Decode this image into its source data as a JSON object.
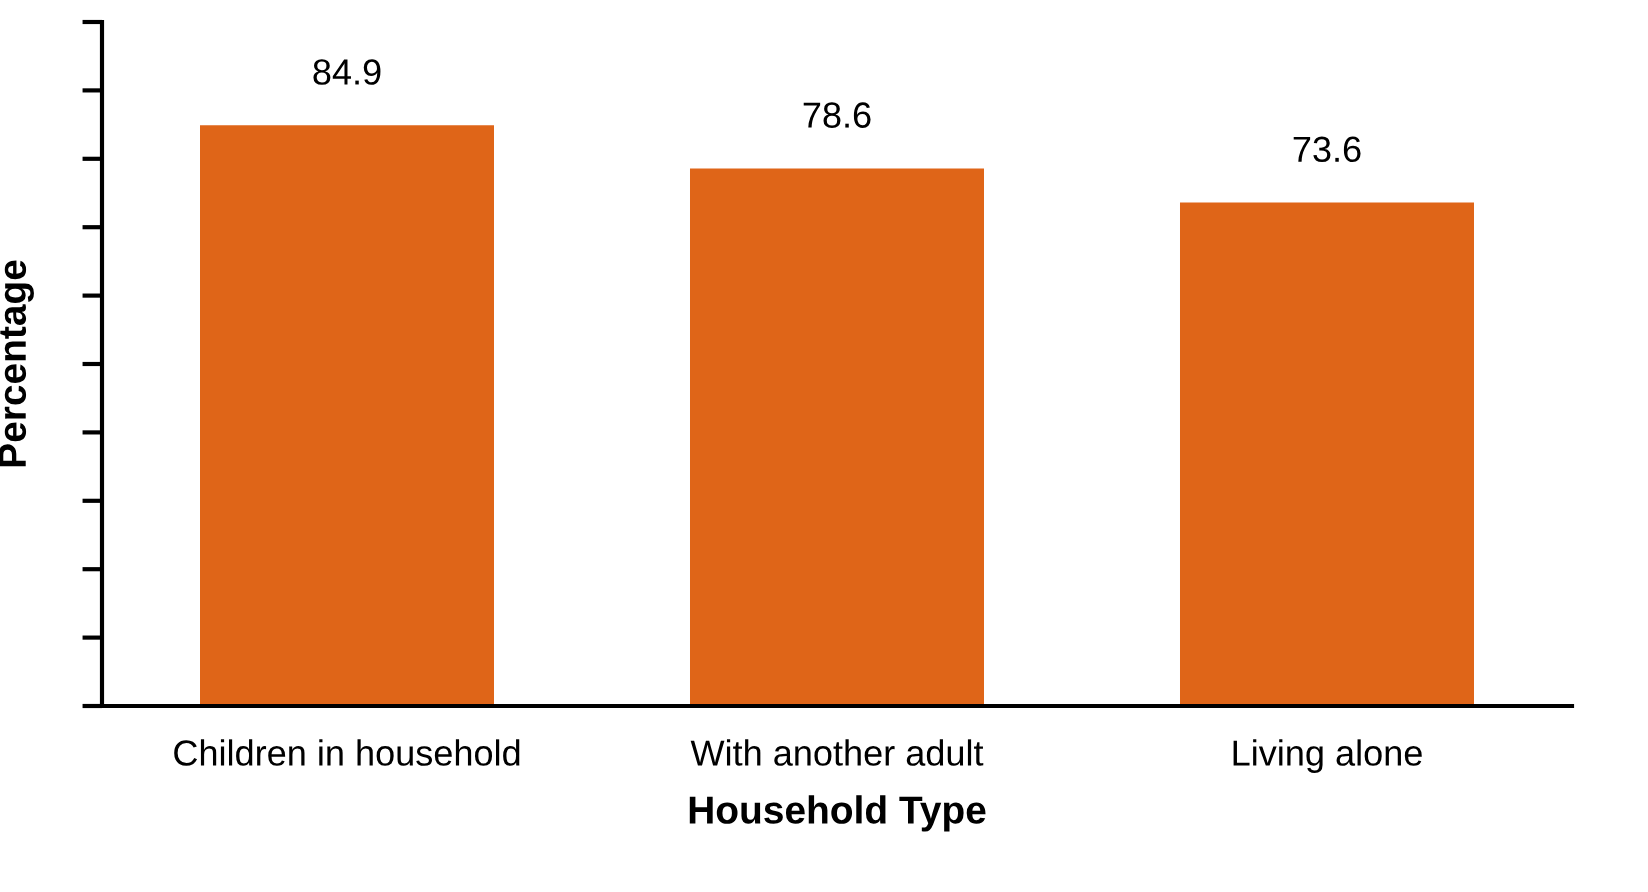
{
  "chart_data": {
    "type": "bar",
    "xlabel": "Household Type",
    "ylabel": "Percentage",
    "categories": [
      "Children in household",
      "With another adult",
      "Living alone"
    ],
    "values": [
      84.9,
      78.6,
      73.6
    ],
    "color": "#df6518",
    "ylim": [
      0,
      100
    ],
    "yticks": [
      {
        "value": 0,
        "label": null
      },
      {
        "value": 10,
        "label": null
      },
      {
        "value": 20,
        "label": null
      },
      {
        "value": 30,
        "label": null
      },
      {
        "value": 40,
        "label": null
      },
      {
        "value": 50,
        "label": null
      },
      {
        "value": 60,
        "label": null
      },
      {
        "value": 70,
        "label": null
      },
      {
        "value": 80,
        "label": null
      },
      {
        "value": 90,
        "label": null
      },
      {
        "value": 100,
        "label": null
      }
    ],
    "data_labels": true,
    "grid": false,
    "legend": false,
    "tick_labels": "x"
  }
}
